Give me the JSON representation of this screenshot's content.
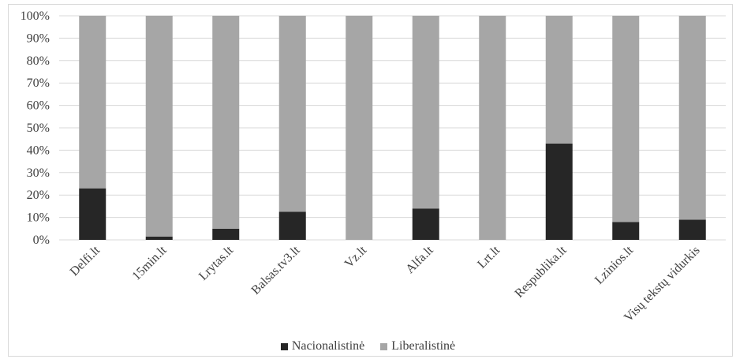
{
  "chart_data": {
    "type": "bar",
    "stacked": true,
    "percent_stacked": true,
    "categories": [
      "Delfi.lt",
      "15min.lt",
      "Lrytas.lt",
      "Balsas.tv3.lt",
      "Vz.lt",
      "Alfa.lt",
      "Lrt.lt",
      "Respublika.lt",
      "Lzinios.lt",
      "Visų tekstų vidurkis"
    ],
    "series": [
      {
        "name": "Nacionalistinė",
        "color": "#262626",
        "values": [
          23,
          1.5,
          5,
          12.5,
          0,
          14,
          0,
          43,
          8,
          9
        ]
      },
      {
        "name": "Liberalistinė",
        "color": "#a6a6a6",
        "values": [
          77,
          98.5,
          95,
          87.5,
          100,
          86,
          100,
          57,
          92,
          91
        ]
      }
    ],
    "y_ticks": [
      "0%",
      "10%",
      "20%",
      "30%",
      "40%",
      "50%",
      "60%",
      "70%",
      "80%",
      "90%",
      "100%"
    ],
    "ylim": [
      0,
      100
    ],
    "grid": true,
    "legend_position": "bottom",
    "gridline_color": "#d9d9d9"
  }
}
